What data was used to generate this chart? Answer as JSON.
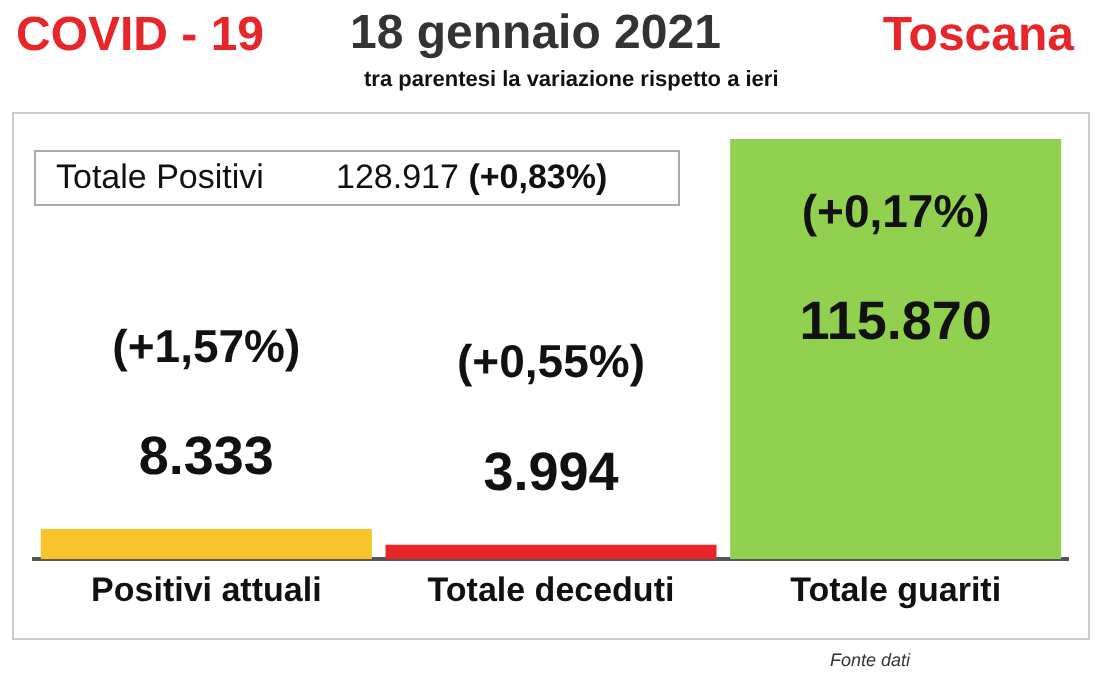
{
  "chart_data": {
    "type": "bar",
    "title": "18 gennaio 2021",
    "subtitle": "tra parentesi la variazione rispetto a ieri",
    "categories": [
      "Positivi attuali",
      "Totale deceduti",
      "Totale guariti"
    ],
    "values": [
      8333,
      3994,
      115870
    ],
    "colors": [
      "#f9c32c",
      "#e8262a",
      "#92d050"
    ],
    "value_labels": [
      "8.333",
      "3.994",
      "115.870"
    ],
    "annotations": [
      "COVID - 19",
      "Toscana",
      "Totale Positivi",
      "128.917 (+0,83%)",
      "(+1,57%)",
      "(+0,55%)",
      "(+0,17%)",
      "Fonte dati"
    ],
    "grid": false,
    "legend": false
  }
}
